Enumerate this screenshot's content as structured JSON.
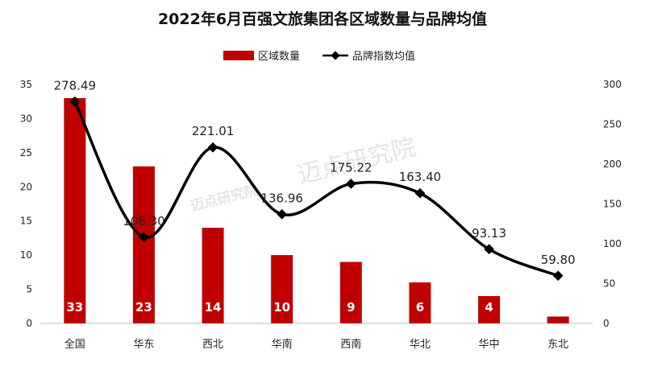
{
  "chart_data": {
    "type": "bar+line",
    "title": "2022年6月百强文旅集团各区域数量与品牌均值",
    "categories": [
      "全国",
      "华东",
      "西北",
      "华南",
      "西南",
      "华北",
      "华中",
      "东北"
    ],
    "series": [
      {
        "name": "区域数量",
        "type": "bar",
        "axis": "left",
        "values": [
          33,
          23,
          14,
          10,
          9,
          6,
          4,
          1
        ],
        "labels": [
          "33",
          "23",
          "14",
          "10",
          "9",
          "6",
          "4",
          ""
        ]
      },
      {
        "name": "品牌指数均值",
        "type": "line",
        "axis": "right",
        "values": [
          278.49,
          108.3,
          221.01,
          136.96,
          175.22,
          163.4,
          93.13,
          59.8
        ],
        "labels": [
          "278.49",
          "108.30",
          "221.01",
          "136.96",
          "175.22",
          "163.40",
          "93.13",
          "59.80"
        ]
      }
    ],
    "y_left": {
      "min": 0,
      "max": 35,
      "ticks": [
        "0",
        "5",
        "10",
        "15",
        "20",
        "25",
        "30",
        "35"
      ]
    },
    "y_right": {
      "min": 0,
      "max": 300,
      "ticks": [
        "0",
        "50",
        "100",
        "150",
        "200",
        "250",
        "300"
      ]
    },
    "legend_position": "top-center",
    "watermark": "迈点研究院"
  },
  "colors": {
    "bar": "#c00000",
    "line": "#000000",
    "text": "#222222"
  }
}
